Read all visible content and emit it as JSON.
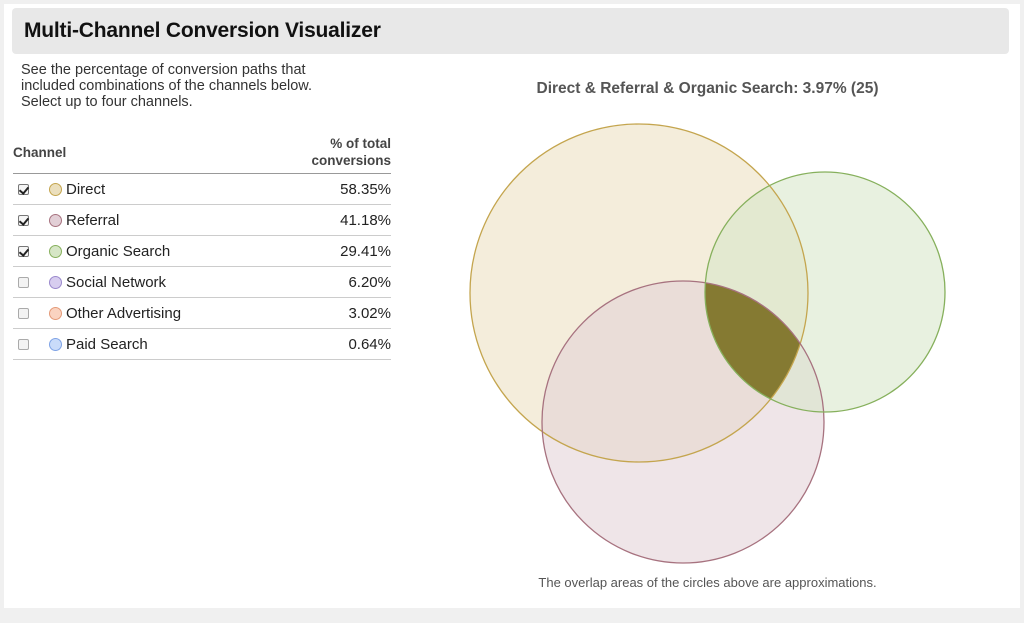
{
  "header": {
    "title": "Multi-Channel Conversion Visualizer"
  },
  "intro": {
    "lines": [
      "See the percentage of conversion paths that",
      "included combinations of the channels below.",
      "Select up to four channels."
    ]
  },
  "table": {
    "col_channel": "Channel",
    "col_pct_line1": "% of total",
    "col_pct_line2": "conversions",
    "rows": [
      {
        "name": "Direct",
        "pct": "58.35%",
        "checked": true,
        "fill": "#ebdfbd",
        "stroke": "#c4a54e"
      },
      {
        "name": "Referral",
        "pct": "41.18%",
        "checked": true,
        "fill": "#e2cfd6",
        "stroke": "#a7727f"
      },
      {
        "name": "Organic Search",
        "pct": "29.41%",
        "checked": true,
        "fill": "#d6e6c6",
        "stroke": "#86b05c"
      },
      {
        "name": "Social Network",
        "pct": "6.20%",
        "checked": false,
        "fill": "#d7cdef",
        "stroke": "#9a88cc"
      },
      {
        "name": "Other Advertising",
        "pct": "3.02%",
        "checked": false,
        "fill": "#fad3c0",
        "stroke": "#e49a78"
      },
      {
        "name": "Paid Search",
        "pct": "0.64%",
        "checked": false,
        "fill": "#c9dbfa",
        "stroke": "#7fa3e6"
      }
    ]
  },
  "chart_data": {
    "type": "venn",
    "title": "Direct & Referral & Organic Search: 3.97% (25)",
    "sets": [
      {
        "name": "Direct",
        "value": 58.35,
        "fill": "#ebdfbd",
        "stroke": "#c4a54e"
      },
      {
        "name": "Referral",
        "value": 41.18,
        "fill": "#e2cfd6",
        "stroke": "#a7727f"
      },
      {
        "name": "Organic Search",
        "value": 29.41,
        "fill": "#d6e6c6",
        "stroke": "#86b05c"
      }
    ],
    "highlighted_intersection": {
      "sets": [
        "Direct",
        "Referral",
        "Organic Search"
      ],
      "percent": 3.97,
      "count": 25,
      "fill": "#857a32"
    },
    "note": "The overlap areas of the circles above are approximations."
  }
}
